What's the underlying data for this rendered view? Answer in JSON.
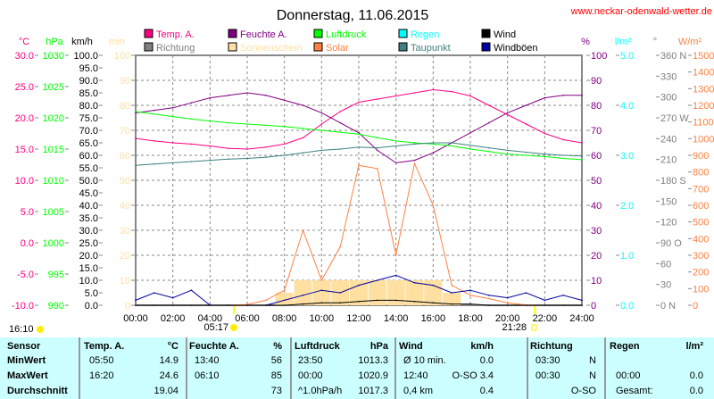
{
  "title": "Donnerstag, 11.06.2015",
  "site": "www.neckar-odenwald-wetter.de",
  "axis_units": {
    "temp": "°C",
    "pressure": "hPa",
    "wind": "km/h",
    "sun": "min",
    "hum": "%",
    "rain": "l/m²",
    "dir": "°",
    "solar": "W/m²"
  },
  "legend": [
    {
      "label": "Temp. A.",
      "color": "#ff0080"
    },
    {
      "label": "Feuchte A.",
      "color": "#800080"
    },
    {
      "label": "Luftdruck",
      "color": "#00ff00"
    },
    {
      "label": "Regen",
      "color": "#00ffff"
    },
    {
      "label": "Wind",
      "color": "#000000"
    },
    {
      "label": "Richtung",
      "color": "#808080"
    },
    {
      "label": "Sonnenschein",
      "color": "#ffe0a0"
    },
    {
      "label": "Solar",
      "color": "#ff8040"
    },
    {
      "label": "Taupunkt",
      "color": "#408080"
    },
    {
      "label": "Windböen",
      "color": "#0000a0"
    }
  ],
  "sun": {
    "moonrise": "16:10",
    "sunrise": "05:17",
    "sunset": "21:28"
  },
  "chart_data": {
    "type": "line",
    "title": "Donnerstag, 11.06.2015",
    "x": [
      "00:00",
      "01:00",
      "02:00",
      "03:00",
      "04:00",
      "05:00",
      "06:00",
      "07:00",
      "08:00",
      "09:00",
      "10:00",
      "11:00",
      "12:00",
      "13:00",
      "14:00",
      "15:00",
      "16:00",
      "17:00",
      "18:00",
      "19:00",
      "20:00",
      "21:00",
      "22:00",
      "23:00",
      "24:00"
    ],
    "xticks": [
      "00:00",
      "02:00",
      "04:00",
      "06:00",
      "08:00",
      "10:00",
      "12:00",
      "14:00",
      "16:00",
      "18:00",
      "20:00",
      "22:00",
      "24:00"
    ],
    "axes": {
      "temp": {
        "range": [
          -10,
          30
        ],
        "ticks": [
          "30.0",
          "25.0",
          "20.0",
          "15.0",
          "10.0",
          "5.0",
          "0.0",
          "-5.0",
          "-10.0"
        ]
      },
      "pressure": {
        "range": [
          990,
          1030
        ],
        "ticks": [
          "1030",
          "1025",
          "1020",
          "1015",
          "1010",
          "1005",
          "1000",
          "995",
          "990"
        ]
      },
      "wind": {
        "range": [
          0,
          100
        ],
        "ticks": [
          "100.0",
          "95.0",
          "90.0",
          "85.0",
          "80.0",
          "75.0",
          "70.0",
          "65.0",
          "60.0",
          "55.0",
          "50.0",
          "45.0",
          "40.0",
          "35.0",
          "30.0",
          "25.0",
          "20.0",
          "15.0",
          "10.0",
          "5.0",
          "0.0"
        ]
      },
      "sun": {
        "range": [
          0,
          100
        ],
        "ticks": [
          "100",
          "90",
          "80",
          "70",
          "60",
          "50",
          "40",
          "30",
          "20",
          "10",
          "0"
        ]
      },
      "hum": {
        "range": [
          0,
          100
        ],
        "ticks": [
          "100",
          "90",
          "80",
          "70",
          "60",
          "50",
          "40",
          "30",
          "20",
          "10",
          "0"
        ]
      },
      "rain": {
        "range": [
          0,
          5
        ],
        "ticks": [
          "5.0",
          "4.0",
          "3.0",
          "2.0",
          "1.0",
          "0.0"
        ]
      },
      "dir": {
        "range": [
          0,
          360
        ],
        "ticks": [
          "360 N",
          "330",
          "300",
          "270 W",
          "240",
          "210",
          "180 S",
          "150",
          "120",
          "90 O",
          "60",
          "30",
          "0 N"
        ]
      },
      "solar": {
        "range": [
          0,
          1500
        ],
        "ticks": [
          "1500",
          "1400",
          "1300",
          "1200",
          "1100",
          "1000",
          "900",
          "800",
          "700",
          "600",
          "500",
          "400",
          "300",
          "200",
          "100",
          "0"
        ]
      }
    },
    "series": [
      {
        "name": "Temp. A.",
        "axis": "temp",
        "color": "#ff0080",
        "values": [
          16.7,
          16.3,
          16.0,
          15.8,
          15.5,
          15.1,
          15.0,
          15.3,
          15.8,
          16.8,
          19.0,
          21.0,
          22.5,
          23.0,
          23.5,
          24.0,
          24.5,
          24.2,
          23.5,
          22.0,
          20.5,
          19.0,
          17.5,
          16.5,
          16.0
        ]
      },
      {
        "name": "Feuchte A.",
        "axis": "hum",
        "color": "#800080",
        "values": [
          77,
          78,
          79,
          81,
          83,
          84,
          85,
          84,
          82,
          80,
          77,
          73,
          69,
          62,
          57,
          58,
          61,
          65,
          69,
          73,
          77,
          80,
          83,
          84,
          84
        ]
      },
      {
        "name": "Luftdruck",
        "axis": "pressure",
        "color": "#00ff00",
        "values": [
          1021.0,
          1020.6,
          1020.2,
          1019.8,
          1019.5,
          1019.2,
          1019.0,
          1018.8,
          1018.6,
          1018.3,
          1018.0,
          1017.7,
          1017.4,
          1016.8,
          1016.3,
          1016.0,
          1015.8,
          1015.5,
          1015.0,
          1014.6,
          1014.2,
          1014.0,
          1013.8,
          1013.5,
          1013.3
        ]
      },
      {
        "name": "Taupunkt",
        "axis": "temp",
        "color": "#408080",
        "values": [
          12.4,
          12.6,
          12.8,
          13.0,
          13.2,
          13.4,
          13.5,
          13.7,
          14.0,
          14.4,
          14.8,
          15.0,
          15.3,
          15.2,
          15.5,
          15.8,
          16.0,
          16.0,
          15.6,
          15.2,
          14.8,
          14.5,
          14.2,
          14.0,
          13.9
        ]
      },
      {
        "name": "Solar",
        "axis": "solar",
        "color": "#ff8040",
        "values": [
          0,
          0,
          0,
          0,
          0,
          0,
          5,
          30,
          90,
          450,
          150,
          350,
          840,
          820,
          300,
          850,
          600,
          120,
          60,
          40,
          15,
          2,
          0,
          0,
          0
        ]
      },
      {
        "name": "Windböen",
        "axis": "wind",
        "color": "#0000a0",
        "values": [
          2,
          5,
          3,
          6,
          0,
          0,
          0,
          0,
          2,
          4,
          6,
          5,
          8,
          10,
          12,
          9,
          8,
          5,
          6,
          4,
          3,
          5,
          2,
          4,
          2
        ]
      },
      {
        "name": "Wind",
        "axis": "wind",
        "color": "#000000",
        "values": [
          0,
          0,
          0,
          0,
          0,
          0,
          0,
          0,
          0,
          0.5,
          1,
          1,
          1.5,
          2,
          2,
          1.5,
          1,
          0.5,
          0.5,
          0,
          0,
          0,
          0,
          0,
          0
        ]
      },
      {
        "name": "Sonnenschein",
        "axis": "sun",
        "color": "#ffe0a0",
        "type": "bar",
        "values": [
          0,
          0,
          0,
          0,
          0,
          0,
          0,
          0,
          5,
          10,
          10,
          10,
          10,
          10,
          10,
          10,
          10,
          5,
          0,
          0,
          0,
          0,
          0,
          0,
          0
        ]
      }
    ]
  },
  "table": {
    "headers": [
      "Sensor",
      "Temp. A.",
      "°C",
      "Feuchte A.",
      "%",
      "Luftdruck",
      "hPa",
      "Wind",
      "km/h",
      "Richtung",
      "Regen",
      "l/m²"
    ],
    "rows": [
      {
        "label": "MinWert",
        "t_time": "05:50",
        "t_val": "14.9",
        "h_time": "13:40",
        "h_val": "56",
        "p_time": "23:50",
        "p_val": "1013.3",
        "w_time": "Ø 10 min.",
        "w_val": "0.0",
        "d_time": "03:30",
        "d_val": "N",
        "r_time": "",
        "r_val": ""
      },
      {
        "label": "MaxWert",
        "t_time": "16:20",
        "t_val": "24.6",
        "h_time": "06:10",
        "h_val": "85",
        "p_time": "00:00",
        "p_val": "1020.9",
        "w_time": "12:40",
        "w_val": "O-SO 3.4",
        "d_time": "00:30",
        "d_val": "N",
        "r_time": "00:00",
        "r_val": "0.0"
      },
      {
        "label": "Durchschnitt",
        "t_time": "",
        "t_val": "19.04",
        "h_time": "",
        "h_val": "73",
        "p_time": "^1.0hPa/h",
        "p_val": "1017.3",
        "w_time": "0,4 km",
        "w_val": "0.4",
        "d_time": "",
        "d_val": "O-SO",
        "r_time": "Gesamt:",
        "r_val": "0.0"
      }
    ]
  }
}
